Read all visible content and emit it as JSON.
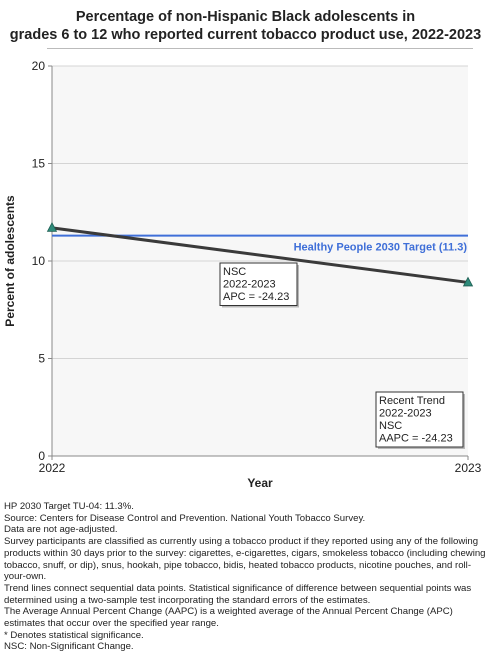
{
  "chart_data": {
    "type": "line",
    "title_lines": [
      "Percentage of non-Hispanic Black adolescents in",
      "grades 6 to 12 who reported current tobacco product use, 2022-2023"
    ],
    "xlabel": "Year",
    "ylabel": "Percent of adolescents",
    "x": [
      "2022",
      "2023"
    ],
    "ylim": [
      0,
      20
    ],
    "yticks": [
      0,
      5,
      10,
      15,
      20
    ],
    "grid": true,
    "series": [
      {
        "values": [
          11.7,
          8.9
        ],
        "color": "#3a3a3a",
        "marker_color": "#2e8b7a"
      }
    ],
    "target": {
      "label": "Healthy People 2030 Target (11.3)",
      "value": 11.3,
      "color": "#3f6fd8"
    },
    "segment_box": [
      "NSC",
      "2022-2023",
      "APC = -24.23"
    ],
    "trend_box": [
      "Recent Trend",
      "2022-2023",
      "NSC",
      "AAPC = -24.23"
    ]
  },
  "notes": [
    "HP 2030 Target TU-04: 11.3%.",
    "Source: Centers for Disease Control and Prevention. National Youth Tobacco Survey.",
    "Data are not age-adjusted.",
    "Survey participants are classified as currently using a tobacco product if they reported using any of the following products within 30 days prior to the survey: cigarettes, e-cigarettes, cigars, smokeless tobacco (including chewing tobacco, snuff, or dip), snus, hookah, pipe tobacco, bidis, heated tobacco products, nicotine pouches, and roll-your-own.",
    "Trend lines connect sequential data points. Statistical significance of difference between sequential points was determined using a two-sample test incorporating the standard errors of the estimates.",
    "The Average Annual Percent Change (AAPC) is a weighted average of the Annual Percent Change (APC) estimates that occur over the specified year range.",
    "* Denotes statistical significance.",
    "NSC: Non-Significant Change."
  ]
}
